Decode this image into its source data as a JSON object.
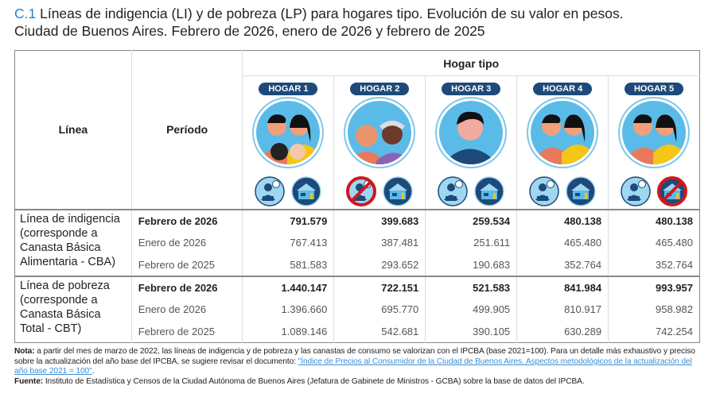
{
  "title": {
    "number": "C.1",
    "line1": " Líneas de indigencia (LI) y de pobreza (LP) para hogares tipo. Evolución de su valor en pesos.",
    "line2": "Ciudad de Buenos Aires. Febrero de 2026, enero de 2026 y febrero de 2025"
  },
  "headers": {
    "linea": "Línea",
    "periodo": "Período",
    "hogar_tipo": "Hogar tipo"
  },
  "hogares": [
    {
      "label": "HOGAR 1",
      "members": "couple with two children",
      "worker_prohibited": false,
      "house_prohibited": false
    },
    {
      "label": "HOGAR 2",
      "members": "elderly couple",
      "worker_prohibited": true,
      "house_prohibited": false
    },
    {
      "label": "HOGAR 3",
      "members": "single adult",
      "worker_prohibited": false,
      "house_prohibited": false
    },
    {
      "label": "HOGAR 4",
      "members": "couple",
      "worker_prohibited": false,
      "house_prohibited": false
    },
    {
      "label": "HOGAR 5",
      "members": "couple",
      "worker_prohibited": false,
      "house_prohibited": true
    }
  ],
  "groups": [
    {
      "linea": "Línea de indigencia (corresponde a Canasta Básica Alimentaria - CBA)",
      "rows": [
        {
          "periodo": "Febrero de 2026",
          "bold": true,
          "values": [
            "791.579",
            "399.683",
            "259.534",
            "480.138",
            "480.138"
          ]
        },
        {
          "periodo": "Enero de 2026",
          "bold": false,
          "values": [
            "767.413",
            "387.481",
            "251.611",
            "465.480",
            "465.480"
          ]
        },
        {
          "periodo": "Febrero de 2025",
          "bold": false,
          "values": [
            "581.583",
            "293.652",
            "190.683",
            "352.764",
            "352.764"
          ]
        }
      ]
    },
    {
      "linea": "Línea de pobreza (corresponde a Canasta Básica Total - CBT)",
      "rows": [
        {
          "periodo": "Febrero de 2026",
          "bold": true,
          "values": [
            "1.440.147",
            "722.151",
            "521.583",
            "841.984",
            "993.957"
          ]
        },
        {
          "periodo": "Enero de 2026",
          "bold": false,
          "values": [
            "1.396.660",
            "695.770",
            "499.905",
            "810.917",
            "958.982"
          ]
        },
        {
          "periodo": "Febrero de 2025",
          "bold": false,
          "values": [
            "1.089.146",
            "542.681",
            "390.105",
            "630.289",
            "742.254"
          ]
        }
      ]
    }
  ],
  "notes": {
    "nota_label": "Nota:",
    "nota_text": " a partir del mes de marzo de 2022, las líneas de indigencia y de pobreza y las canastas de consumo se valorizan con el IPCBA (base 2021=100). Para un detalle más exhaustivo y preciso sobre la actualización del año base del IPCBA, se sugiere revisar el documento: ",
    "link": "\"Índice de Precios al Consumidor de la Ciudad de Buenos Aires. Aspectos metodológicos de la actualización del año base 2021 = 100\"",
    "link_end": ".",
    "fuente_label": "Fuente:",
    "fuente_text": " Instituto de Estadística y Censos de la Ciudad Autónoma de Buenos Aires (Jefatura de Gabinete de Ministros - GCBA) sobre la base de datos del IPCBA."
  },
  "colors": {
    "accent": "#2a7fc9",
    "pill": "#1d4a7a",
    "circle": "#5bbbe8",
    "prohibited": "#d0171e",
    "link": "#3b8fd8"
  }
}
